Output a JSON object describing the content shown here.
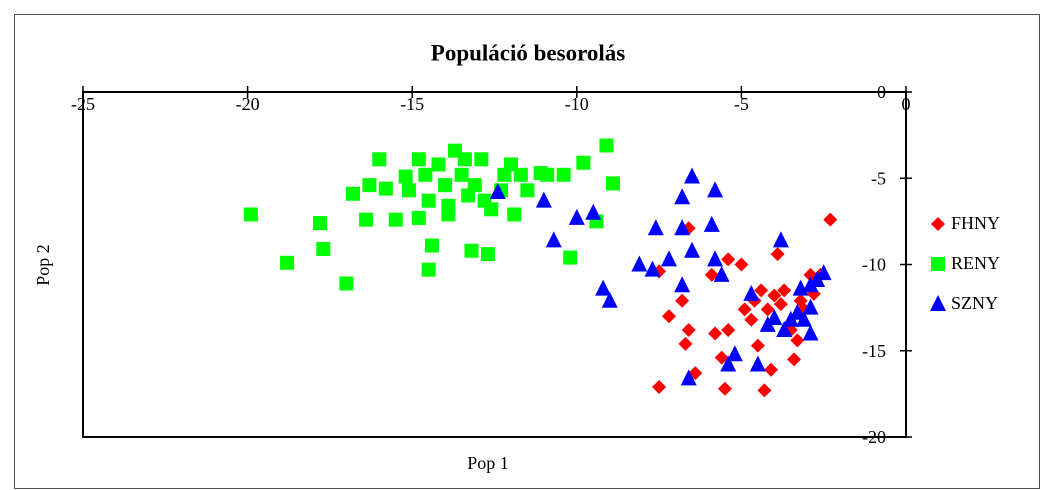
{
  "chart_data": {
    "type": "scatter",
    "title": "Populáció besorolás",
    "x_label": "Pop 1",
    "y_label": "Pop 2",
    "xlim": [
      -25,
      0
    ],
    "xticks": [
      -25,
      -20,
      -15,
      -10,
      -5,
      0
    ],
    "ylim": [
      -20,
      0
    ],
    "yticks": [
      0,
      -5,
      -10,
      -15,
      -20
    ],
    "legend": "right",
    "series": [
      {
        "name": "FHNY",
        "color": "#ff0000",
        "marker": "diamond",
        "x": [
          -7.5,
          -7.5,
          -7.2,
          -6.8,
          -6.7,
          -6.6,
          -6.4,
          -6.6,
          -5.9,
          -5.8,
          -5.6,
          -5.5,
          -5.4,
          -5.4,
          -5.0,
          -4.9,
          -4.7,
          -4.6,
          -4.5,
          -4.4,
          -4.3,
          -4.2,
          -4.1,
          -4.0,
          -3.9,
          -3.8,
          -3.7,
          -3.5,
          -3.4,
          -3.3,
          -3.2,
          -3.1,
          -2.9,
          -2.8,
          -2.6,
          -2.3
        ],
        "values": [
          -17.1,
          -10.4,
          -13.0,
          -12.1,
          -14.6,
          -13.8,
          -16.3,
          -7.9,
          -10.6,
          -14.0,
          -15.4,
          -17.2,
          -13.8,
          -9.7,
          -10.0,
          -12.6,
          -13.2,
          -12.1,
          -14.7,
          -11.5,
          -17.3,
          -12.6,
          -16.1,
          -11.8,
          -9.4,
          -12.3,
          -11.5,
          -13.8,
          -15.5,
          -14.4,
          -12.1,
          -12.6,
          -10.6,
          -11.7,
          -10.6,
          -7.4
        ]
      },
      {
        "name": "RENY",
        "color": "#00ff00",
        "marker": "square",
        "x": [
          -19.9,
          -18.8,
          -17.8,
          -17.7,
          -17.0,
          -16.8,
          -16.3,
          -16.0,
          -15.8,
          -16.4,
          -15.5,
          -15.2,
          -15.1,
          -14.8,
          -14.6,
          -14.5,
          -14.4,
          -14.5,
          -14.2,
          -14.0,
          -13.9,
          -13.7,
          -13.5,
          -13.4,
          -13.3,
          -13.2,
          -13.1,
          -12.9,
          -12.8,
          -12.7,
          -12.6,
          -12.3,
          -12.2,
          -12.0,
          -11.9,
          -11.7,
          -11.5,
          -11.1,
          -10.9,
          -10.4,
          -10.2,
          -9.8,
          -9.4,
          -9.1,
          -8.9,
          -13.9,
          -14.8
        ],
        "values": [
          -7.1,
          -9.9,
          -7.6,
          -9.1,
          -11.1,
          -5.9,
          -5.4,
          -3.9,
          -5.6,
          -7.4,
          -7.4,
          -4.9,
          -5.7,
          -3.9,
          -4.8,
          -6.3,
          -8.9,
          -10.3,
          -4.2,
          -5.4,
          -6.6,
          -3.4,
          -4.8,
          -3.9,
          -6.0,
          -9.2,
          -5.4,
          -3.9,
          -6.3,
          -9.4,
          -6.8,
          -5.7,
          -4.8,
          -4.2,
          -7.1,
          -4.8,
          -5.7,
          -4.7,
          -4.8,
          -4.8,
          -9.6,
          -4.1,
          -7.5,
          -3.1,
          -5.3,
          -7.1,
          -7.3
        ]
      },
      {
        "name": "SZNY",
        "color": "#0000ff",
        "marker": "triangle",
        "x": [
          -12.4,
          -11.0,
          -10.7,
          -10.0,
          -9.5,
          -9.2,
          -9.0,
          -8.1,
          -7.7,
          -7.6,
          -7.2,
          -6.8,
          -6.8,
          -6.8,
          -6.5,
          -6.5,
          -6.6,
          -5.8,
          -5.9,
          -5.8,
          -5.6,
          -5.4,
          -5.2,
          -4.7,
          -4.5,
          -4.2,
          -4.0,
          -3.8,
          -3.7,
          -3.5,
          -3.3,
          -3.2,
          -3.1,
          -2.9,
          -2.9,
          -2.9,
          -2.7,
          -2.5
        ],
        "values": [
          -5.8,
          -6.3,
          -8.6,
          -7.3,
          -7.0,
          -11.4,
          -12.1,
          -10.0,
          -10.3,
          -7.9,
          -9.7,
          -7.9,
          -11.2,
          -6.1,
          -4.9,
          -9.2,
          -16.6,
          -5.7,
          -7.7,
          -9.7,
          -10.6,
          -15.8,
          -15.2,
          -11.7,
          -15.8,
          -13.5,
          -13.1,
          -8.6,
          -13.8,
          -13.2,
          -12.8,
          -11.4,
          -13.2,
          -11.2,
          -12.5,
          -14.0,
          -10.9,
          -10.5
        ]
      }
    ]
  }
}
